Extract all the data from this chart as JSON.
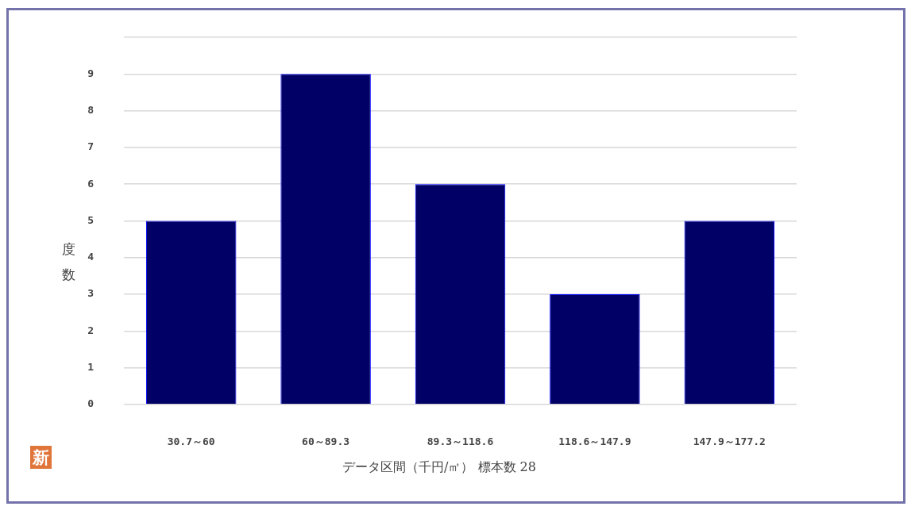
{
  "chart_data": {
    "type": "bar",
    "categories": [
      "30.7～60",
      "60～89.3",
      "89.3～118.6",
      "118.6～147.9",
      "147.9～177.2"
    ],
    "values": [
      5,
      9,
      6,
      3,
      5
    ],
    "color": "#000066",
    "xlabel": "データ区間（千円/㎡） 標本数 28",
    "ylabel": "度数",
    "ylim": [
      0,
      10
    ],
    "yticks": [
      0,
      1,
      2,
      3,
      4,
      5,
      6,
      7,
      8,
      9,
      {
        "value": 10,
        "label": null
      }
    ],
    "grid": "y",
    "annotations": [
      "新"
    ]
  }
}
